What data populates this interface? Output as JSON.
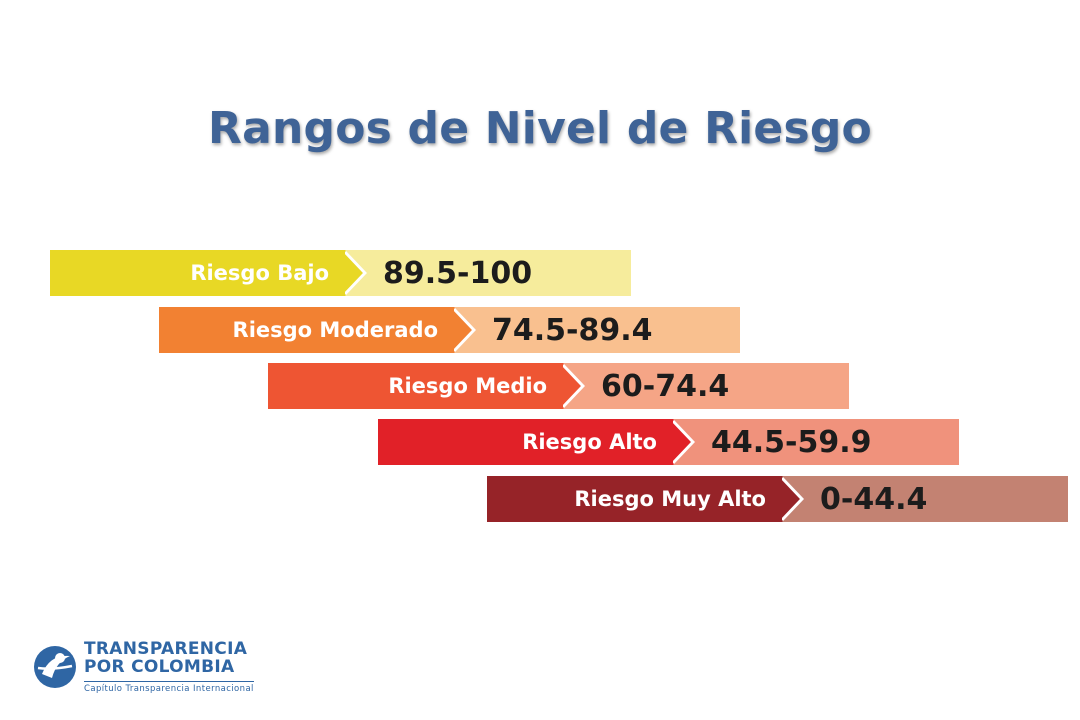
{
  "title": "Rangos de Nivel de Riesgo",
  "levels": [
    {
      "label": "Riesgo Bajo",
      "range": "89.5-100",
      "color_dark": "#e8d825",
      "color_light": "#f6ec9c"
    },
    {
      "label": "Riesgo Moderado",
      "range": "74.5-89.4",
      "color_dark": "#f28132",
      "color_light": "#f9c08f"
    },
    {
      "label": "Riesgo Medio",
      "range": "60-74.4",
      "color_dark": "#ee5533",
      "color_light": "#f5a586"
    },
    {
      "label": "Riesgo Alto",
      "range": "44.5-59.9",
      "color_dark": "#e12128",
      "color_light": "#f0927c"
    },
    {
      "label": "Riesgo Muy Alto",
      "range": "0-44.4",
      "color_dark": "#962328",
      "color_light": "#c38272"
    }
  ],
  "logo": {
    "line1": "TRANSPARENCIA",
    "line2": "POR COLOMBIA",
    "line3": "Capítulo Transparencia Internacional",
    "icon": "person-globe-icon",
    "color": "#2f66a4"
  }
}
